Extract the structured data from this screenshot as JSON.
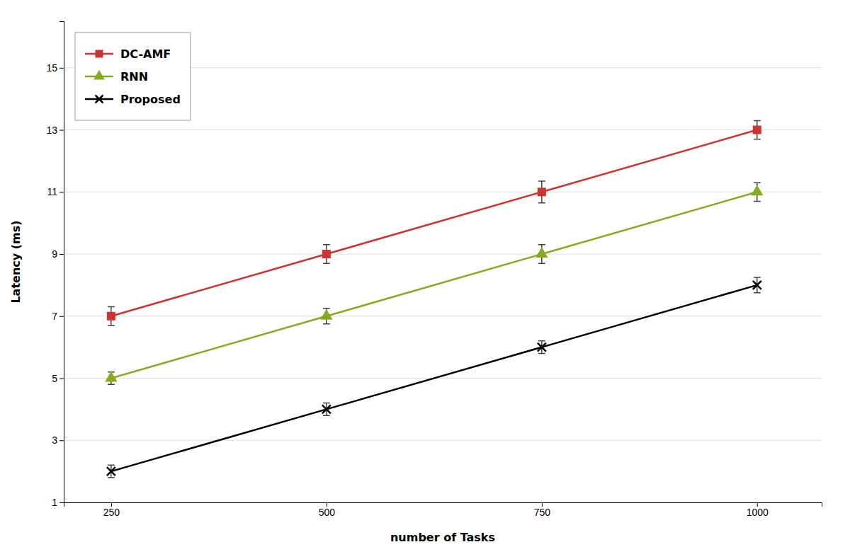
{
  "chart_data": {
    "type": "line",
    "x": [
      250,
      500,
      750,
      1000
    ],
    "series": [
      {
        "name": "DC-AMF",
        "values": [
          7,
          9,
          11,
          13
        ],
        "errors": [
          0.3,
          0.3,
          0.35,
          0.3
        ],
        "color": "#CC3333",
        "marker": "square"
      },
      {
        "name": "RNN",
        "values": [
          5,
          7,
          9,
          11
        ],
        "errors": [
          0.2,
          0.25,
          0.3,
          0.3
        ],
        "color": "#88AA22",
        "marker": "triangle"
      },
      {
        "name": "Proposed",
        "values": [
          2.0,
          4.0,
          6.0,
          8.0
        ],
        "errors": [
          0.2,
          0.2,
          0.2,
          0.25
        ],
        "color": "#000000",
        "marker": "x"
      }
    ],
    "xlabel": "number of Tasks",
    "ylabel": "Latency (ms)",
    "xlim": [
      195,
      1075
    ],
    "ylim": [
      1,
      16.5
    ],
    "xticks": [
      250,
      500,
      750,
      1000
    ],
    "yticks": [
      1,
      3,
      5,
      7,
      9,
      11,
      13,
      15
    ],
    "grid": "y",
    "legend": "upper left"
  }
}
